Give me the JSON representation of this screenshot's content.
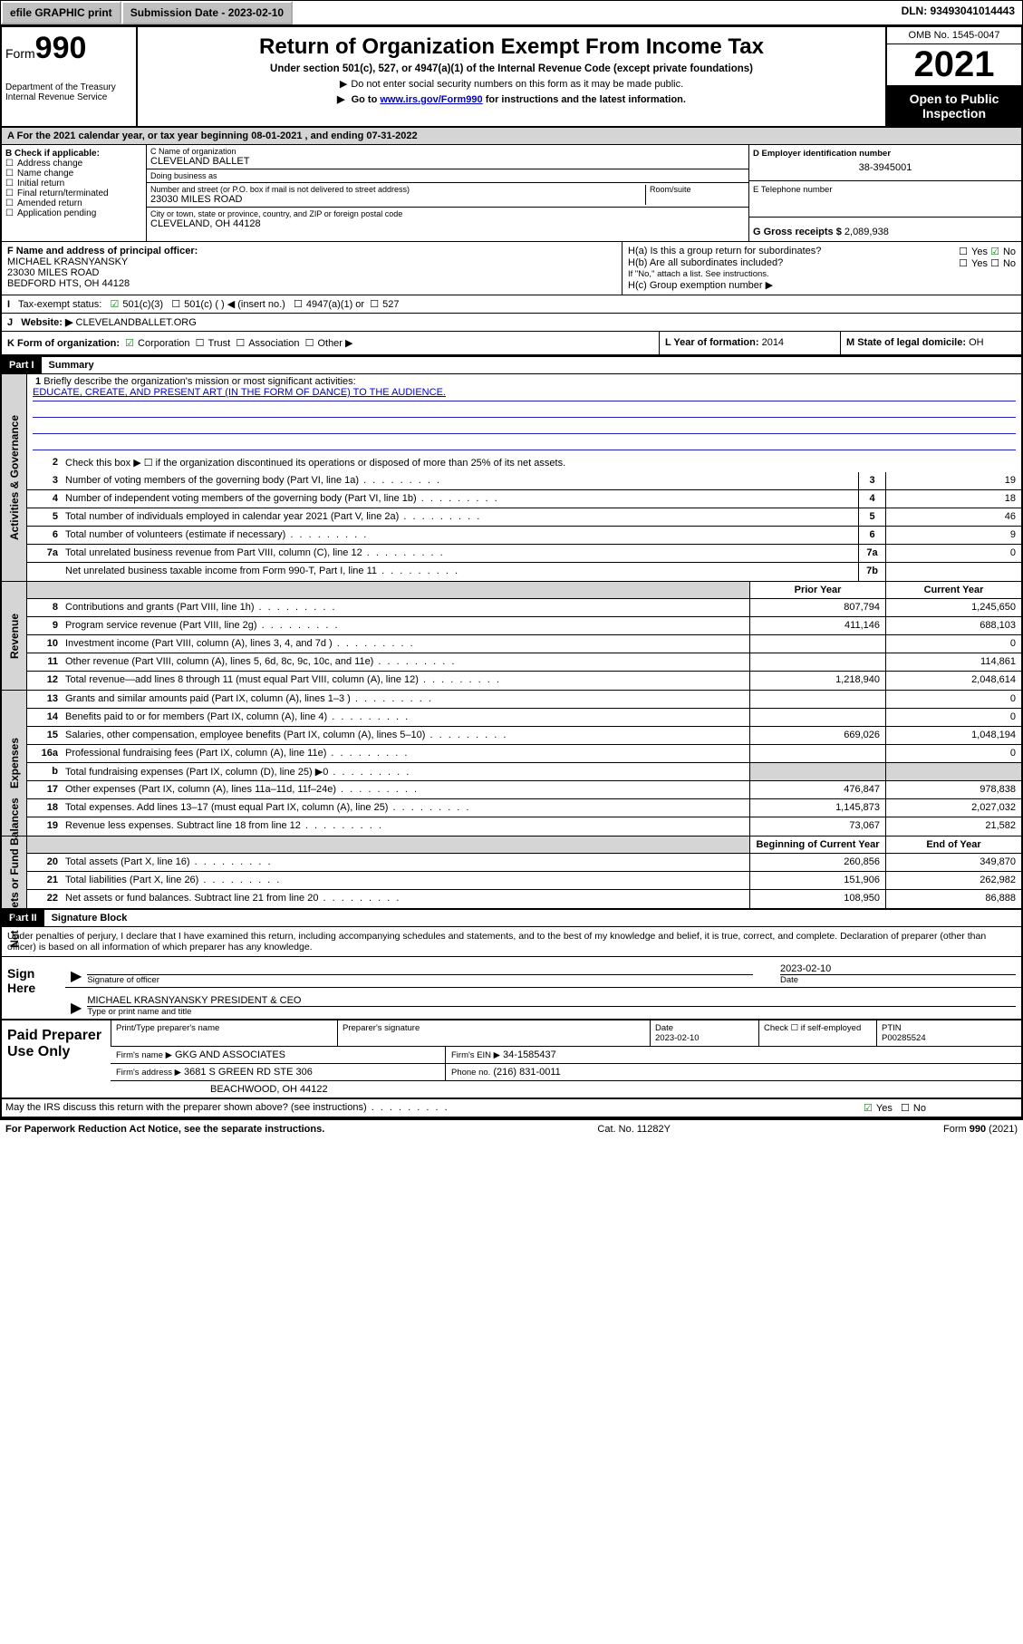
{
  "topbar": {
    "efile": "efile GRAPHIC print",
    "submission": "Submission Date - 2023-02-10",
    "dln": "DLN: 93493041014443"
  },
  "header": {
    "form_word": "Form",
    "form_num": "990",
    "title": "Return of Organization Exempt From Income Tax",
    "subtitle": "Under section 501(c), 527, or 4947(a)(1) of the Internal Revenue Code (except private foundations)",
    "note1": "Do not enter social security numbers on this form as it may be made public.",
    "note2_pre": "Go to ",
    "note2_link": "www.irs.gov/Form990",
    "note2_post": " for instructions and the latest information.",
    "dept": "Department of the Treasury\nInternal Revenue Service",
    "omb": "OMB No. 1545-0047",
    "year": "2021",
    "otp": "Open to Public Inspection"
  },
  "A": "For the 2021 calendar year, or tax year beginning 08-01-2021   , and ending 07-31-2022",
  "B": {
    "label": "B Check if applicable:",
    "items": [
      "Address change",
      "Name change",
      "Initial return",
      "Final return/terminated",
      "Amended return",
      "Application pending"
    ]
  },
  "C": {
    "name_label": "C Name of organization",
    "name": "CLEVELAND BALLET",
    "dba_label": "Doing business as",
    "dba": "",
    "addr_label": "Number and street (or P.O. box if mail is not delivered to street address)",
    "room_label": "Room/suite",
    "addr": "23030 MILES ROAD",
    "city_label": "City or town, state or province, country, and ZIP or foreign postal code",
    "city": "CLEVELAND, OH  44128"
  },
  "D": {
    "label": "D Employer identification number",
    "val": "38-3945001"
  },
  "E": {
    "label": "E Telephone number",
    "val": ""
  },
  "G": {
    "label": "G Gross receipts $",
    "val": "2,089,938"
  },
  "F": {
    "label": "F Name and address of principal officer:",
    "l1": "MICHAEL KRASNYANSKY",
    "l2": "23030 MILES ROAD",
    "l3": "BEDFORD HTS, OH  44128"
  },
  "H": {
    "a": "H(a)  Is this a group return for subordinates?",
    "b": "H(b)  Are all subordinates included?",
    "bnote": "If \"No,\" attach a list. See instructions.",
    "c": "H(c)  Group exemption number ▶",
    "yes": "Yes",
    "no": "No"
  },
  "I": {
    "label": "Tax-exempt status:",
    "o1": "501(c)(3)",
    "o2": "501(c) (  ) ◀ (insert no.)",
    "o3": "4947(a)(1) or",
    "o4": "527"
  },
  "J": {
    "label": "Website: ▶",
    "val": "CLEVELANDBALLET.ORG"
  },
  "K": {
    "label": "K Form of organization:",
    "o1": "Corporation",
    "o2": "Trust",
    "o3": "Association",
    "o4": "Other ▶"
  },
  "L": {
    "label": "L Year of formation:",
    "val": "2014"
  },
  "M": {
    "label": "M State of legal domicile:",
    "val": "OH"
  },
  "part1": {
    "hdr": "Part I",
    "title": "Summary",
    "l1a": "Briefly describe the organization's mission or most significant activities:",
    "l1b": "EDUCATE, CREATE, AND PRESENT ART (IN THE FORM OF DANCE) TO THE AUDIENCE.",
    "l2": "Check this box ▶ ☐  if the organization discontinued its operations or disposed of more than 25% of its net assets.",
    "rows_a": [
      {
        "n": "3",
        "t": "Number of voting members of the governing body (Part VI, line 1a)",
        "b": "3",
        "v": "19"
      },
      {
        "n": "4",
        "t": "Number of independent voting members of the governing body (Part VI, line 1b)",
        "b": "4",
        "v": "18"
      },
      {
        "n": "5",
        "t": "Total number of individuals employed in calendar year 2021 (Part V, line 2a)",
        "b": "5",
        "v": "46"
      },
      {
        "n": "6",
        "t": "Total number of volunteers (estimate if necessary)",
        "b": "6",
        "v": "9"
      },
      {
        "n": "7a",
        "t": "Total unrelated business revenue from Part VIII, column (C), line 12",
        "b": "7a",
        "v": "0"
      },
      {
        "n": "",
        "t": "Net unrelated business taxable income from Form 990-T, Part I, line 11",
        "b": "7b",
        "v": ""
      }
    ],
    "col_prior": "Prior Year",
    "col_curr": "Current Year",
    "rows_r": [
      {
        "n": "8",
        "t": "Contributions and grants (Part VIII, line 1h)",
        "p": "807,794",
        "c": "1,245,650"
      },
      {
        "n": "9",
        "t": "Program service revenue (Part VIII, line 2g)",
        "p": "411,146",
        "c": "688,103"
      },
      {
        "n": "10",
        "t": "Investment income (Part VIII, column (A), lines 3, 4, and 7d )",
        "p": "",
        "c": "0"
      },
      {
        "n": "11",
        "t": "Other revenue (Part VIII, column (A), lines 5, 6d, 8c, 9c, 10c, and 11e)",
        "p": "",
        "c": "114,861"
      },
      {
        "n": "12",
        "t": "Total revenue—add lines 8 through 11 (must equal Part VIII, column (A), line 12)",
        "p": "1,218,940",
        "c": "2,048,614"
      }
    ],
    "rows_e": [
      {
        "n": "13",
        "t": "Grants and similar amounts paid (Part IX, column (A), lines 1–3 )",
        "p": "",
        "c": "0"
      },
      {
        "n": "14",
        "t": "Benefits paid to or for members (Part IX, column (A), line 4)",
        "p": "",
        "c": "0"
      },
      {
        "n": "15",
        "t": "Salaries, other compensation, employee benefits (Part IX, column (A), lines 5–10)",
        "p": "669,026",
        "c": "1,048,194"
      },
      {
        "n": "16a",
        "t": "Professional fundraising fees (Part IX, column (A), line 11e)",
        "p": "",
        "c": "0"
      },
      {
        "n": "b",
        "t": "Total fundraising expenses (Part IX, column (D), line 25) ▶0",
        "p": "shade",
        "c": "shade"
      },
      {
        "n": "17",
        "t": "Other expenses (Part IX, column (A), lines 11a–11d, 11f–24e)",
        "p": "476,847",
        "c": "978,838"
      },
      {
        "n": "18",
        "t": "Total expenses. Add lines 13–17 (must equal Part IX, column (A), line 25)",
        "p": "1,145,873",
        "c": "2,027,032"
      },
      {
        "n": "19",
        "t": "Revenue less expenses. Subtract line 18 from line 12",
        "p": "73,067",
        "c": "21,582"
      }
    ],
    "col_begin": "Beginning of Current Year",
    "col_end": "End of Year",
    "rows_n": [
      {
        "n": "20",
        "t": "Total assets (Part X, line 16)",
        "p": "260,856",
        "c": "349,870"
      },
      {
        "n": "21",
        "t": "Total liabilities (Part X, line 26)",
        "p": "151,906",
        "c": "262,982"
      },
      {
        "n": "22",
        "t": "Net assets or fund balances. Subtract line 21 from line 20",
        "p": "108,950",
        "c": "86,888"
      }
    ],
    "vlab_a": "Activities & Governance",
    "vlab_r": "Revenue",
    "vlab_e": "Expenses",
    "vlab_n": "Net Assets or Fund Balances"
  },
  "part2": {
    "hdr": "Part II",
    "title": "Signature Block",
    "decl": "Under penalties of perjury, I declare that I have examined this return, including accompanying schedules and statements, and to the best of my knowledge and belief, it is true, correct, and complete. Declaration of preparer (other than officer) is based on all information of which preparer has any knowledge."
  },
  "sign": {
    "here": "Sign Here",
    "sig_label": "Signature of officer",
    "date_label": "Date",
    "date": "2023-02-10",
    "name": "MICHAEL KRASNYANSKY  PRESIDENT & CEO",
    "name_label": "Type or print name and title"
  },
  "paid": {
    "title": "Paid Preparer Use Only",
    "h1": "Print/Type preparer's name",
    "h2": "Preparer's signature",
    "h3": "Date",
    "h4": "Check ☐ if self-employed",
    "h5": "PTIN",
    "date": "2023-02-10",
    "ptin": "P00285524",
    "firm_name_l": "Firm's name    ▶",
    "firm_name": "GKG AND ASSOCIATES",
    "firm_ein_l": "Firm's EIN ▶",
    "firm_ein": "34-1585437",
    "firm_addr_l": "Firm's address ▶",
    "firm_addr1": "3681 S GREEN RD STE 306",
    "firm_addr2": "BEACHWOOD, OH  44122",
    "phone_l": "Phone no.",
    "phone": "(216) 831-0011"
  },
  "may": "May the IRS discuss this return with the preparer shown above? (see instructions)",
  "footer": {
    "l": "For Paperwork Reduction Act Notice, see the separate instructions.",
    "m": "Cat. No. 11282Y",
    "r": "Form 990 (2021)"
  }
}
